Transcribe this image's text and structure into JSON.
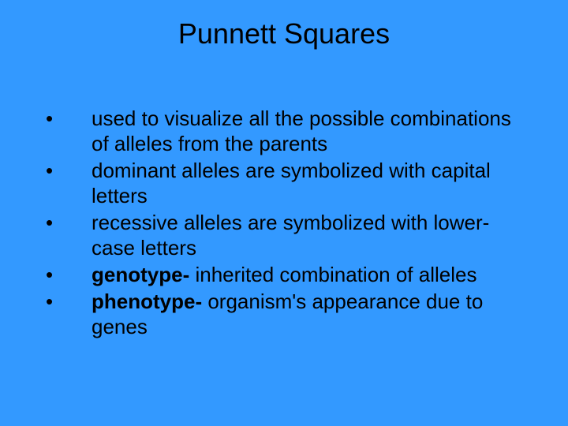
{
  "slide": {
    "background_color": "#3399ff",
    "text_color": "#000000",
    "title": "Punnett Squares",
    "title_fontsize": 36,
    "body_fontsize": 26,
    "line_height": 32,
    "bullet_char": "•",
    "bullets": [
      {
        "prefix_bold": "",
        "text": "used to visualize all the possible combinations of alleles from the parents"
      },
      {
        "prefix_bold": "",
        "text": "dominant alleles are symbolized with capital letters"
      },
      {
        "prefix_bold": "",
        "text": "recessive alleles are symbolized with lower-case letters"
      },
      {
        "prefix_bold": "genotype-",
        "text": " inherited combination of alleles"
      },
      {
        "prefix_bold": "phenotype-",
        "text": " organism's appearance due to genes"
      }
    ]
  }
}
